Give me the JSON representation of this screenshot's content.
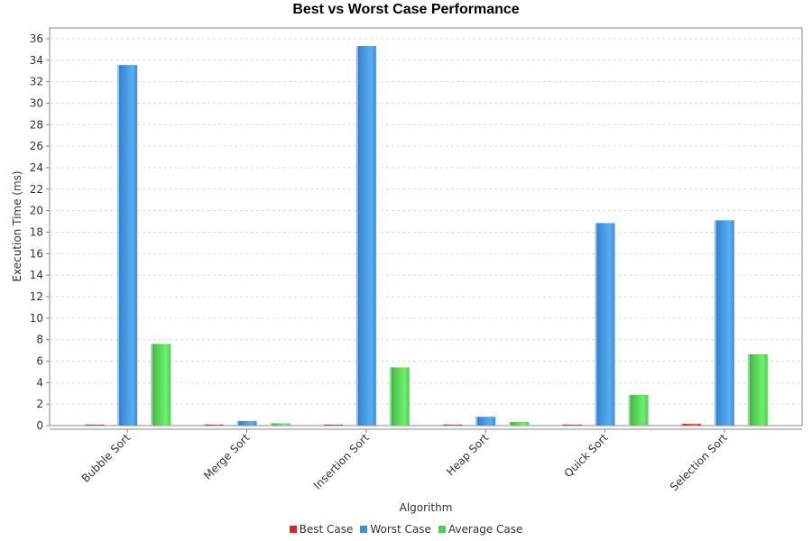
{
  "chart_data": {
    "type": "bar",
    "title": "Best vs Worst Case Performance",
    "xlabel": "Algorithm",
    "ylabel": "Execution Time (ms)",
    "ylim": [
      0,
      37
    ],
    "y_ticks": [
      0,
      2,
      4,
      6,
      8,
      10,
      12,
      14,
      16,
      18,
      20,
      22,
      24,
      26,
      28,
      30,
      32,
      34,
      36
    ],
    "grid": true,
    "legend_position": "bottom-center",
    "categories": [
      "Bubble Sort",
      "Merge Sort",
      "Insertion Sort",
      "Heap Sort",
      "Quick Sort",
      "Selection Sort"
    ],
    "series": [
      {
        "name": "Best Case",
        "color": "#e02020",
        "values": [
          0.01,
          0.06,
          0.01,
          0.08,
          0.07,
          0.17
        ]
      },
      {
        "name": "Worst Case",
        "color": "#3c8fdc",
        "values": [
          33.55,
          0.43,
          35.32,
          0.82,
          18.84,
          19.1
        ]
      },
      {
        "name": "Average Case",
        "color": "#4fcf4f",
        "values": [
          7.6,
          0.22,
          5.42,
          0.34,
          2.86,
          6.64
        ]
      }
    ]
  }
}
